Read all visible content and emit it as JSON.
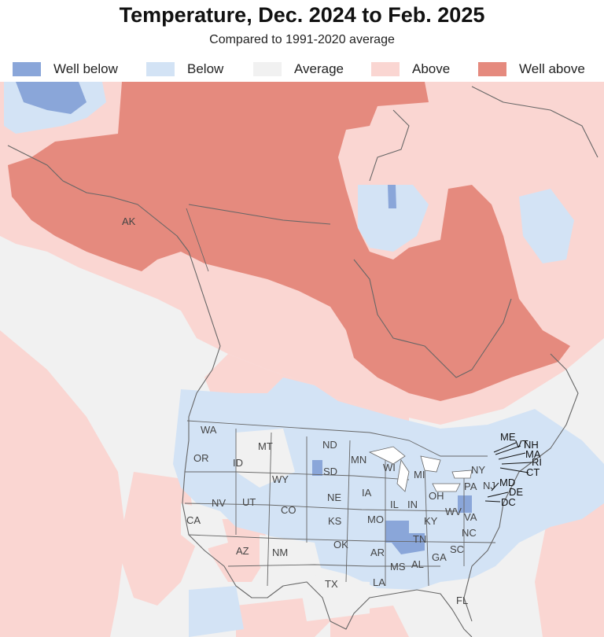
{
  "title": "Temperature, Dec. 2024 to Feb. 2025",
  "subtitle": "Compared to 1991-2020 average",
  "legend": [
    {
      "label": "Well below",
      "color": "#8aa6d9"
    },
    {
      "label": "Below",
      "color": "#d3e3f5"
    },
    {
      "label": "Average",
      "color": "#f1f1f1"
    },
    {
      "label": "Above",
      "color": "#fad6d2"
    },
    {
      "label": "Well above",
      "color": "#e58a7e"
    }
  ],
  "labels": {
    "AK": "AK",
    "WA": "WA",
    "OR": "OR",
    "CA": "CA",
    "ID": "ID",
    "NV": "NV",
    "MT": "MT",
    "WY": "WY",
    "UT": "UT",
    "AZ": "AZ",
    "CO": "CO",
    "NM": "NM",
    "ND": "ND",
    "SD": "SD",
    "NE": "NE",
    "KS": "KS",
    "OK": "OK",
    "TX": "TX",
    "MN": "MN",
    "IA": "IA",
    "MO": "MO",
    "AR": "AR",
    "LA": "LA",
    "WI": "WI",
    "IL": "IL",
    "MS": "MS",
    "MI": "MI",
    "IN": "IN",
    "KY": "KY",
    "TN": "TN",
    "AL": "AL",
    "OH": "OH",
    "WV": "WV",
    "VA": "VA",
    "NC": "NC",
    "SC": "SC",
    "GA": "GA",
    "FL": "FL",
    "PA": "PA",
    "NY": "NY",
    "ME": "ME",
    "VT": "VT",
    "NH": "NH",
    "MA": "MA",
    "RI": "RI",
    "CT": "CT",
    "NJ": "NJ",
    "MD": "MD",
    "DE": "DE",
    "DC": "DC"
  }
}
